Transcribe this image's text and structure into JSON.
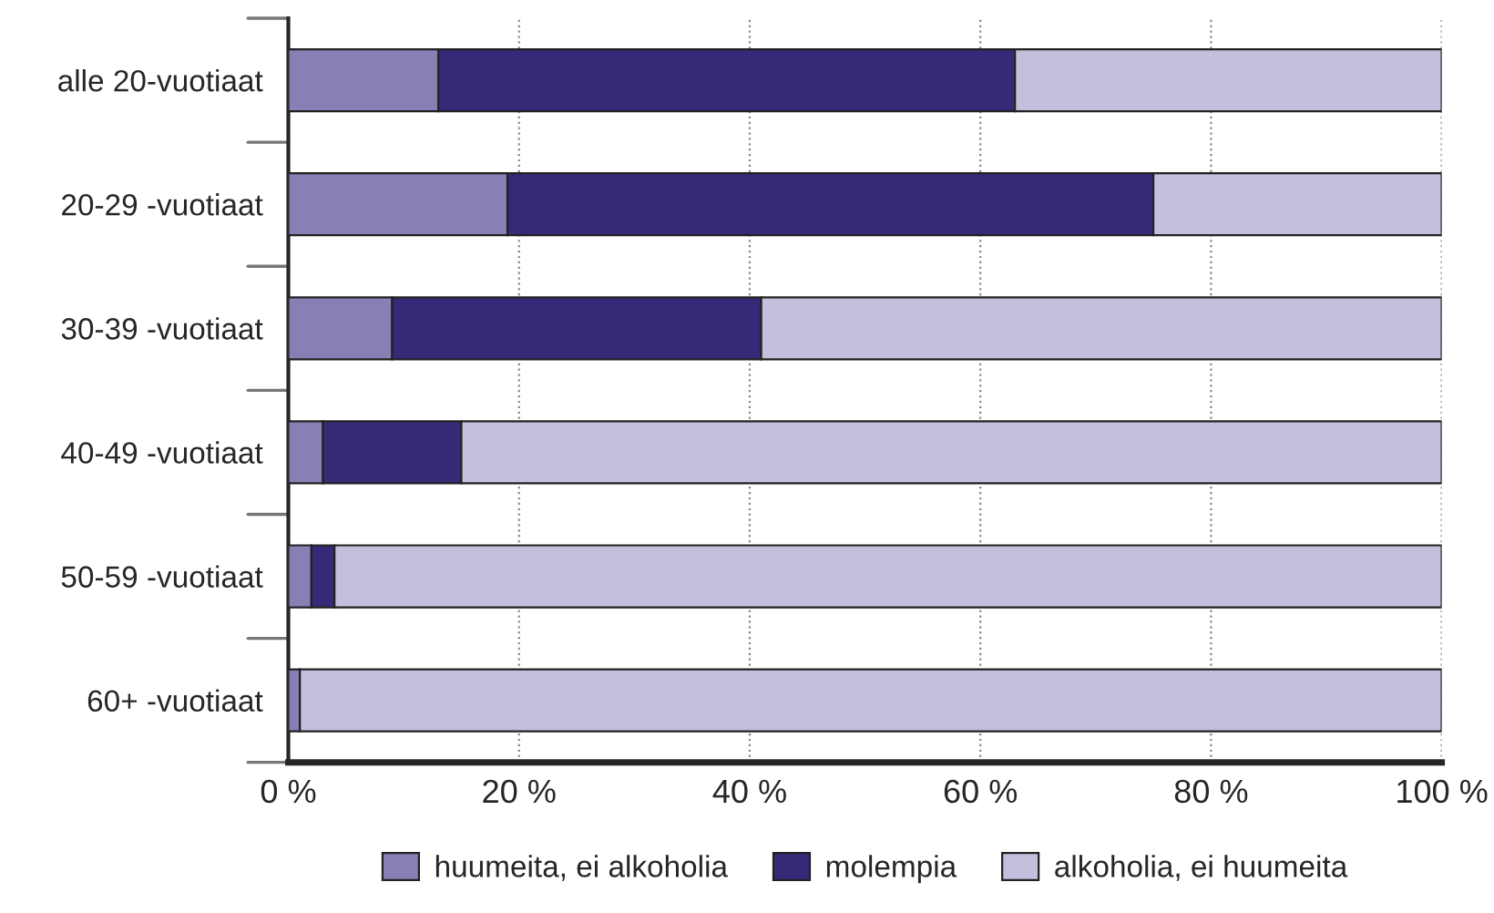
{
  "chart_data": {
    "type": "bar",
    "orientation": "horizontal",
    "stacked": true,
    "categories": [
      "alle 20-vuotiaat",
      "20-29 -vuotiaat",
      "30-39 -vuotiaat",
      "40-49 -vuotiaat",
      "50-59 -vuotiaat",
      "60+ -vuotiaat"
    ],
    "series": [
      {
        "name": "huumeita, ei alkoholia",
        "color": "#8780b4",
        "values": [
          13,
          19,
          9,
          3,
          2,
          1
        ]
      },
      {
        "name": "molempia",
        "color": "#342a78",
        "values": [
          50,
          56,
          32,
          12,
          2,
          0
        ]
      },
      {
        "name": "alkoholia, ei huumeita",
        "color": "#c3bfdc",
        "values": [
          37,
          25,
          59,
          85,
          96,
          99
        ]
      }
    ],
    "xlim": [
      0,
      100
    ],
    "xticks": [
      {
        "value": 0,
        "label": "0 %"
      },
      {
        "value": 20,
        "label": "20 %"
      },
      {
        "value": 40,
        "label": "40 %"
      },
      {
        "value": 60,
        "label": "60 %"
      },
      {
        "value": 80,
        "label": "80 %"
      },
      {
        "value": 100,
        "label": "100 %"
      }
    ],
    "grid": "x",
    "legend": "bottom"
  }
}
